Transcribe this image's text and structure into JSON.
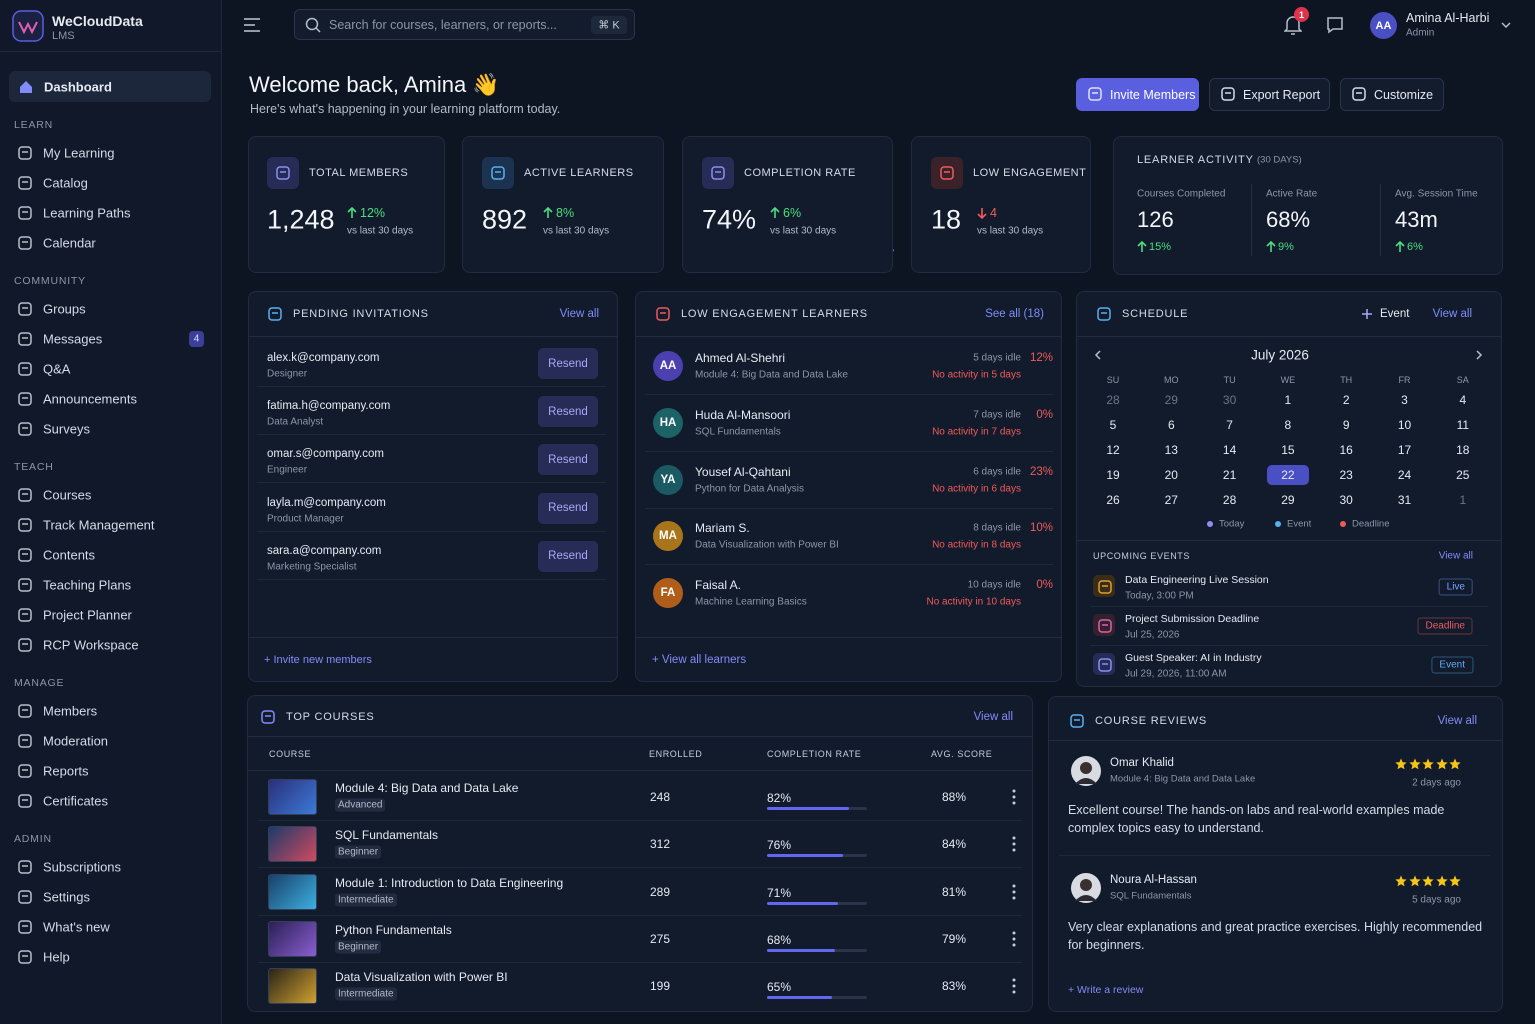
{
  "sidebar": {
    "brand": "WeCloudData",
    "brand_sub": "LMS",
    "active": "Dashboard",
    "sections": [
      {
        "title": "LEARN",
        "items": [
          {
            "label": "My Learning"
          },
          {
            "label": "Catalog"
          },
          {
            "label": "Learning Paths"
          },
          {
            "label": "Calendar"
          }
        ]
      },
      {
        "title": "COMMUNITY",
        "items": [
          {
            "label": "Groups"
          },
          {
            "label": "Messages",
            "badge": "4"
          },
          {
            "label": "Q&A"
          },
          {
            "label": "Announcements"
          },
          {
            "label": "Surveys"
          }
        ]
      },
      {
        "title": "TEACH",
        "items": [
          {
            "label": "Courses"
          },
          {
            "label": "Track Management"
          },
          {
            "label": "Contents"
          },
          {
            "label": "Teaching Plans"
          },
          {
            "label": "Project Planner"
          },
          {
            "label": "RCP Workspace"
          }
        ]
      },
      {
        "title": "MANAGE",
        "items": [
          {
            "label": "Members"
          },
          {
            "label": "Moderation"
          },
          {
            "label": "Reports"
          },
          {
            "label": "Certificates"
          }
        ]
      },
      {
        "title": "ADMIN",
        "items": [
          {
            "label": "Subscriptions"
          },
          {
            "label": "Settings"
          },
          {
            "label": "What's new"
          },
          {
            "label": "Help"
          }
        ]
      }
    ]
  },
  "topbar": {
    "search_placeholder": "Search for courses, learners, or reports...",
    "shortcut": "⌘ K",
    "notifications": "1",
    "user_initials": "AA",
    "user_name": "Amina Al-Harbi",
    "user_role": "Admin"
  },
  "header": {
    "title": "Welcome back, Amina 👋",
    "subtitle": "Here's what's happening in your learning platform today.",
    "buttons": [
      "Invite Members",
      "Export Report",
      "Customize"
    ]
  },
  "stats": [
    {
      "label": "TOTAL MEMBERS",
      "value": "1,248",
      "change": "12%",
      "trend": "up",
      "note": "vs last 30 days"
    },
    {
      "label": "ACTIVE LEARNERS",
      "value": "892",
      "change": "8%",
      "trend": "up",
      "note": "vs last 30 days"
    },
    {
      "label": "COMPLETION RATE",
      "value": "74%",
      "change": "6%",
      "trend": "up",
      "note": "vs last 30 days"
    },
    {
      "label": "LOW ENGAGEMENT",
      "value": "18",
      "change": "4",
      "trend": "down",
      "note": "vs last 30 days"
    }
  ],
  "learner_activity": {
    "title": "LEARNER ACTIVITY",
    "period": "(30 DAYS)",
    "metrics": [
      {
        "label": "Courses Completed",
        "value": "126",
        "change": "15%"
      },
      {
        "label": "Active Rate",
        "value": "68%",
        "change": "9%"
      },
      {
        "label": "Avg. Session Time",
        "value": "43m",
        "change": "6%"
      }
    ]
  },
  "pending_invitations": {
    "title": "PENDING INVITATIONS",
    "link": "View all",
    "action": "Resend",
    "footer": "+ Invite new members",
    "items": [
      {
        "email": "alex.k@company.com",
        "role": "Designer"
      },
      {
        "email": "fatima.h@company.com",
        "role": "Data Analyst"
      },
      {
        "email": "omar.s@company.com",
        "role": "Engineer"
      },
      {
        "email": "layla.m@company.com",
        "role": "Product Manager"
      },
      {
        "email": "sara.a@company.com",
        "role": "Marketing Specialist"
      }
    ]
  },
  "low_engagement": {
    "title": "LOW ENGAGEMENT LEARNERS",
    "link": "See all (18)",
    "footer": "+ View all learners",
    "learners": [
      {
        "initials": "AA",
        "avatar_color": "#4c3fb0",
        "name": "Ahmed Al-Shehri",
        "course": "Module 4: Big Data and Data Lake",
        "idle": "5 days idle",
        "activity": "No activity in 5 days",
        "score": "12%"
      },
      {
        "initials": "HA",
        "avatar_color": "#1c6266",
        "name": "Huda Al-Mansoori",
        "course": "SQL Fundamentals",
        "idle": "7 days idle",
        "activity": "No activity in 7 days",
        "score": "0%"
      },
      {
        "initials": "YA",
        "avatar_color": "#1b5a63",
        "name": "Yousef Al-Qahtani",
        "course": "Python for Data Analysis",
        "idle": "6 days idle",
        "activity": "No activity in 6 days",
        "score": "23%"
      },
      {
        "initials": "MA",
        "avatar_color": "#a8751a",
        "name": "Mariam S.",
        "course": "Data Visualization with Power BI",
        "idle": "8 days idle",
        "activity": "No activity in 8 days",
        "score": "10%"
      },
      {
        "initials": "FA",
        "avatar_color": "#b05d1a",
        "name": "Faisal A.",
        "course": "Machine Learning Basics",
        "idle": "10 days idle",
        "activity": "No activity in 10 days",
        "score": "0%"
      }
    ]
  },
  "schedule": {
    "title": "SCHEDULE",
    "add": "Event",
    "link": "View all",
    "month": "July 2026",
    "weekdays": [
      "SU",
      "MO",
      "TU",
      "WE",
      "TH",
      "FR",
      "SA"
    ],
    "prev_month_days": [
      28,
      29,
      30
    ],
    "days": [
      1,
      2,
      3,
      4,
      5,
      6,
      7,
      8,
      9,
      10,
      11,
      12,
      13,
      14,
      15,
      16,
      17,
      18,
      19,
      20,
      21,
      22,
      23,
      24,
      25,
      26,
      27,
      28,
      29,
      30,
      31
    ],
    "next_month_days": [
      1
    ],
    "highlight": 22,
    "legend": [
      "Today",
      "Event",
      "Deadline"
    ],
    "upcoming_title": "UPCOMING EVENTS",
    "upcoming_link": "View all",
    "events": [
      {
        "title": "Data Engineering Live Session",
        "time": "Today, 3:00 PM",
        "tag": "Live"
      },
      {
        "title": "Project Submission Deadline",
        "time": "Jul 25, 2026",
        "tag": "Deadline"
      },
      {
        "title": "Guest Speaker: AI in Industry",
        "time": "Jul 29, 2026, 11:00 AM",
        "tag": "Event"
      }
    ]
  },
  "top_courses": {
    "title": "TOP COURSES",
    "link": "View all",
    "columns": [
      "COURSE",
      "ENROLLED",
      "COMPLETION RATE",
      "AVG. SCORE"
    ],
    "rows": [
      {
        "name": "Module 4: Big Data and Data Lake",
        "level": "Advanced",
        "enrolled": 248,
        "completion": {
          "value": 82,
          "label": "82%"
        },
        "score": "88%"
      },
      {
        "name": "SQL Fundamentals",
        "level": "Beginner",
        "enrolled": 312,
        "completion": {
          "value": 76,
          "label": "76%"
        },
        "score": "84%"
      },
      {
        "name": "Module 1: Introduction to Data Engineering",
        "level": "Intermediate",
        "enrolled": 289,
        "completion": {
          "value": 71,
          "label": "71%"
        },
        "score": "81%"
      },
      {
        "name": "Python Fundamentals",
        "level": "Beginner",
        "enrolled": 275,
        "completion": {
          "value": 68,
          "label": "68%"
        },
        "score": "79%"
      },
      {
        "name": "Data Visualization with Power BI",
        "level": "Intermediate",
        "enrolled": 199,
        "completion": {
          "value": 65,
          "label": "65%"
        },
        "score": "83%"
      }
    ]
  },
  "course_reviews": {
    "title": "COURSE REVIEWS",
    "link": "View all",
    "footer": "+ Write a review",
    "reviews": [
      {
        "name": "Omar Khalid",
        "course": "Module 4: Big Data and Data Lake",
        "rating": 5,
        "ago": "2 days ago",
        "text": "Excellent course! The hands-on labs and real-world examples made complex topics easy to understand."
      },
      {
        "name": "Noura Al-Hassan",
        "course": "SQL Fundamentals",
        "rating": 5,
        "ago": "5 days ago",
        "text": "Very clear explanations and great practice exercises. Highly recommended for beginners."
      }
    ]
  }
}
